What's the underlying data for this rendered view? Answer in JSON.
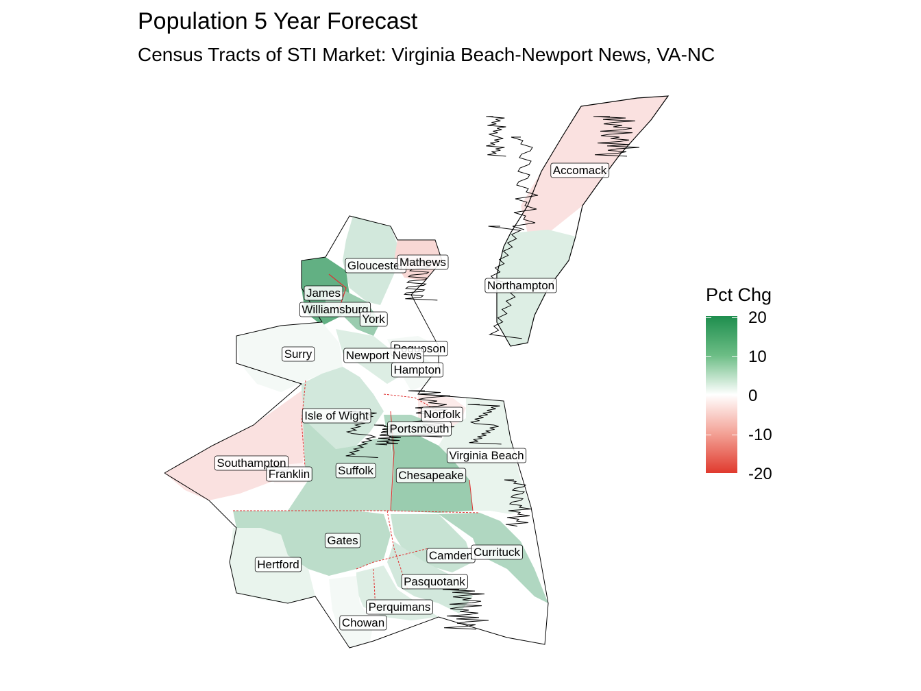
{
  "title": "Population 5 Year Forecast",
  "subtitle": "Census Tracts of STI Market: Virginia Beach-Newport News, VA-NC",
  "legend": {
    "title": "Pct Chg",
    "ticks": [
      "20",
      "10",
      "0",
      "-10",
      "-20"
    ],
    "colors": {
      "high": "#1e8e4e",
      "mid": "#ffffff",
      "low": "#e03a2e",
      "na": "#7f7f7f"
    }
  },
  "regions": [
    {
      "name": "Accomack",
      "pct": -3
    },
    {
      "name": "Northampton",
      "pct": 3
    },
    {
      "name": "Gloucester",
      "pct": 4
    },
    {
      "name": "Mathews",
      "pct": -4
    },
    {
      "name": "James",
      "pct": 14
    },
    {
      "name": "Williamsburg",
      "pct": 8
    },
    {
      "name": "York",
      "pct": 9
    },
    {
      "name": "Poquoson",
      "pct": 1
    },
    {
      "name": "Newport News",
      "pct": 3
    },
    {
      "name": "Hampton",
      "pct": 1
    },
    {
      "name": "Surry",
      "pct": 1
    },
    {
      "name": "Isle of Wight",
      "pct": 4
    },
    {
      "name": "Norfolk",
      "pct": -2
    },
    {
      "name": "Portsmouth",
      "pct": 7
    },
    {
      "name": "Virginia Beach",
      "pct": 2
    },
    {
      "name": "Southampton",
      "pct": -3
    },
    {
      "name": "Franklin",
      "pct": -1
    },
    {
      "name": "Suffolk",
      "pct": 6
    },
    {
      "name": "Chesapeake",
      "pct": 9
    },
    {
      "name": "Gates",
      "pct": 6
    },
    {
      "name": "Camden",
      "pct": 5
    },
    {
      "name": "Currituck",
      "pct": 7
    },
    {
      "name": "Hertford",
      "pct": 2
    },
    {
      "name": "Pasquotank",
      "pct": 4
    },
    {
      "name": "Perquimans",
      "pct": 3
    },
    {
      "name": "Chowan",
      "pct": 1
    }
  ]
}
